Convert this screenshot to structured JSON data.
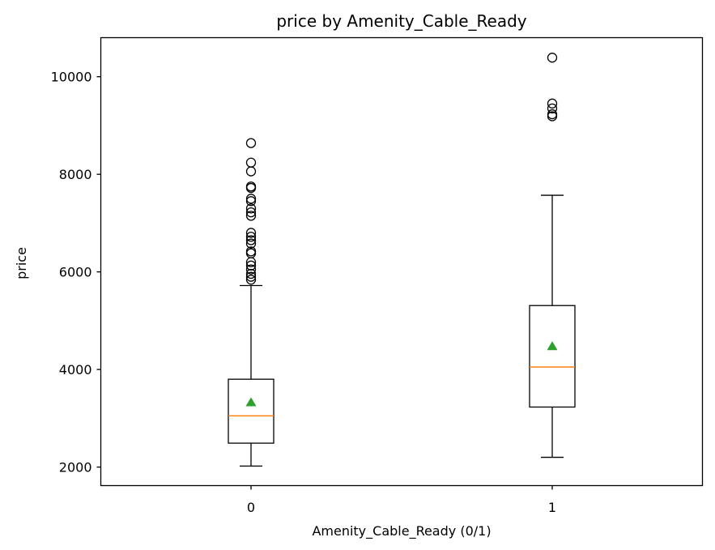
{
  "chart_data": {
    "type": "box",
    "title": "price by Amenity_Cable_Ready",
    "xlabel": "Amenity_Cable_Ready (0/1)",
    "ylabel": "price",
    "categories": [
      "0",
      "1"
    ],
    "ylim": [
      1620,
      10800
    ],
    "yticks": [
      2000,
      4000,
      6000,
      8000,
      10000
    ],
    "boxes": [
      {
        "category": "0",
        "whisker_low": 2020,
        "q1": 2490,
        "median": 3050,
        "q3": 3800,
        "whisker_high": 5720,
        "mean": 3330,
        "outliers": [
          5840,
          5900,
          5960,
          6050,
          6130,
          6200,
          6380,
          6420,
          6580,
          6650,
          6720,
          6800,
          7150,
          7220,
          7300,
          7450,
          7500,
          7720,
          7750,
          8060,
          8240,
          8640
        ]
      },
      {
        "category": "1",
        "whisker_low": 2200,
        "q1": 3230,
        "median": 4050,
        "q3": 5310,
        "whisker_high": 7570,
        "mean": 4480,
        "outliers": [
          9190,
          9230,
          9350,
          9450,
          10390
        ]
      }
    ],
    "colors": {
      "box": "#000000",
      "median": "#ff7f0e",
      "mean": "#2ca02c"
    },
    "grid": false,
    "legend": "none"
  }
}
